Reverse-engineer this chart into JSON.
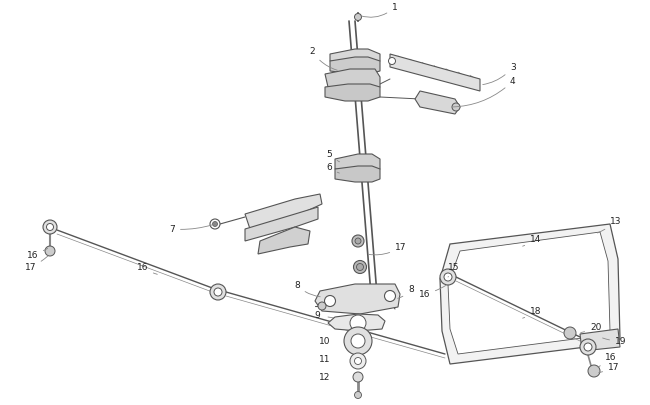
{
  "bg_color": "#ffffff",
  "lc": "#555555",
  "lc2": "#888888",
  "label_color": "#222222",
  "label_fs": 6.5,
  "fig_w": 6.5,
  "fig_h": 4.06,
  "dpi": 100
}
